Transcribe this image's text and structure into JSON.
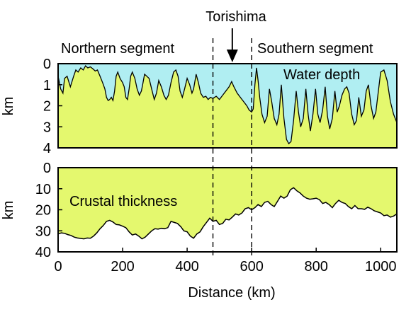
{
  "annotations": {
    "torishima": "Torishima",
    "northern_segment": "Northern segment",
    "southern_segment": "Southern segment",
    "boundary_lines_x_km": [
      480,
      600
    ],
    "arrow_x_km": 540
  },
  "colors": {
    "water": "#b0eef2",
    "crust": "#e4f86e",
    "line": "#000000"
  },
  "chart_data": [
    {
      "type": "area",
      "label": "Water depth",
      "ylabel": "km",
      "xlim": [
        0,
        1050
      ],
      "ylim": [
        0,
        4
      ],
      "y_inverted": true,
      "yticks": [
        "0",
        "1",
        "2",
        "3",
        "4"
      ],
      "fill_above": "water",
      "fill_below": "crust",
      "series": [
        {
          "name": "Water depth",
          "x": [
            0,
            8,
            15,
            20,
            28,
            38,
            48,
            55,
            62,
            70,
            78,
            85,
            92,
            100,
            108,
            115,
            122,
            130,
            138,
            145,
            150,
            155,
            160,
            165,
            170,
            175,
            180,
            185,
            192,
            200,
            205,
            210,
            215,
            220,
            225,
            230,
            238,
            245,
            252,
            258,
            262,
            268,
            275,
            282,
            290,
            298,
            305,
            312,
            320,
            328,
            335,
            342,
            350,
            358,
            365,
            372,
            378,
            385,
            392,
            400,
            408,
            415,
            420,
            428,
            435,
            442,
            450,
            458,
            465,
            472,
            480,
            490,
            500,
            510,
            520,
            530,
            538,
            545,
            555,
            565,
            575,
            585,
            592,
            600,
            605,
            610,
            615,
            620,
            625,
            632,
            640,
            648,
            655,
            662,
            670,
            678,
            685,
            692,
            700,
            708,
            715,
            722,
            730,
            738,
            745,
            752,
            760,
            768,
            775,
            782,
            790,
            798,
            805,
            812,
            820,
            828,
            835,
            842,
            850,
            858,
            865,
            872,
            880,
            888,
            895,
            902,
            910,
            918,
            925,
            932,
            940,
            948,
            955,
            962,
            970,
            978,
            985,
            992,
            1000,
            1010,
            1020,
            1030,
            1040,
            1050
          ],
          "values": [
            0.6,
            1.2,
            1.4,
            0.7,
            0.6,
            1.1,
            0.6,
            0.3,
            0.4,
            0.2,
            0.3,
            0.1,
            0.2,
            0.15,
            0.25,
            0.35,
            0.3,
            0.6,
            0.9,
            1.2,
            1.6,
            1.75,
            1.7,
            1.6,
            1.75,
            1.3,
            0.6,
            0.4,
            0.7,
            0.9,
            1.1,
            1.6,
            1.7,
            1.2,
            0.6,
            0.4,
            0.7,
            1.2,
            1.5,
            1.3,
            1.0,
            0.5,
            0.6,
            0.7,
            1.2,
            1.7,
            1.4,
            0.8,
            1.1,
            1.5,
            1.7,
            1.5,
            0.9,
            0.4,
            0.3,
            0.6,
            1.3,
            1.6,
            1.2,
            0.7,
            1.0,
            1.4,
            1.2,
            0.5,
            0.9,
            1.4,
            1.6,
            1.55,
            1.7,
            1.6,
            1.65,
            1.55,
            1.7,
            1.5,
            1.3,
            1.1,
            0.85,
            1.1,
            1.4,
            1.6,
            1.8,
            2.0,
            2.2,
            2.3,
            2.15,
            1.0,
            0.2,
            0.8,
            1.6,
            2.4,
            2.8,
            2.5,
            1.2,
            1.8,
            2.6,
            2.9,
            2.4,
            1.0,
            2.6,
            3.6,
            3.8,
            3.7,
            2.7,
            1.3,
            2.3,
            3.0,
            2.6,
            1.2,
            2.4,
            3.2,
            2.4,
            1.2,
            2.4,
            2.8,
            2.2,
            1.1,
            2.5,
            3.1,
            2.6,
            1.3,
            2.3,
            2.0,
            1.5,
            1.2,
            1.1,
            1.4,
            2.4,
            2.9,
            2.7,
            1.6,
            2.5,
            2.2,
            1.3,
            1.0,
            2.0,
            2.6,
            2.3,
            1.4,
            0.4,
            0.3,
            0.8,
            1.8,
            2.4,
            2.8
          ]
        }
      ]
    },
    {
      "type": "area",
      "label": "Crustal thickness",
      "ylabel": "km",
      "xlabel": "Distance (km)",
      "xlim": [
        0,
        1050
      ],
      "ylim": [
        0,
        40
      ],
      "y_inverted": true,
      "xticks": [
        "0",
        "200",
        "400",
        "600",
        "800",
        "1000"
      ],
      "yticks": [
        "0",
        "10",
        "20",
        "30",
        "40"
      ],
      "fill_above": "crust",
      "fill_below": "none",
      "series": [
        {
          "name": "Crustal thickness",
          "x": [
            0,
            10,
            20,
            30,
            40,
            50,
            60,
            70,
            80,
            90,
            100,
            110,
            120,
            130,
            140,
            150,
            160,
            170,
            180,
            190,
            200,
            210,
            220,
            230,
            240,
            250,
            260,
            270,
            280,
            290,
            300,
            310,
            320,
            330,
            340,
            350,
            360,
            370,
            380,
            390,
            400,
            410,
            420,
            430,
            440,
            450,
            460,
            470,
            480,
            490,
            500,
            510,
            520,
            530,
            540,
            550,
            560,
            570,
            580,
            590,
            600,
            610,
            620,
            630,
            640,
            650,
            660,
            670,
            680,
            690,
            700,
            710,
            720,
            730,
            740,
            750,
            760,
            770,
            780,
            790,
            800,
            810,
            820,
            830,
            840,
            850,
            860,
            870,
            880,
            890,
            900,
            910,
            920,
            930,
            940,
            950,
            960,
            970,
            980,
            990,
            1000,
            1010,
            1020,
            1030,
            1040,
            1050
          ],
          "values": [
            31.5,
            31.0,
            31.2,
            31.8,
            32.2,
            33.0,
            33.4,
            33.6,
            33.8,
            33.4,
            33.5,
            32.5,
            31.0,
            29.0,
            27.5,
            25.5,
            25.0,
            25.8,
            27.0,
            27.2,
            27.8,
            28.5,
            30.5,
            32.0,
            31.5,
            32.5,
            33.8,
            33.0,
            31.5,
            30.0,
            29.0,
            29.2,
            28.8,
            29.0,
            28.5,
            25.5,
            26.0,
            26.5,
            28.0,
            30.0,
            30.5,
            32.5,
            33.5,
            31.5,
            30.5,
            28.0,
            26.0,
            24.0,
            25.5,
            25.0,
            27.0,
            26.5,
            24.5,
            24.8,
            23.5,
            22.0,
            22.5,
            21.5,
            19.5,
            19.0,
            20.0,
            19.0,
            17.5,
            18.5,
            16.5,
            16.0,
            17.5,
            18.5,
            16.0,
            13.5,
            14.5,
            13.5,
            10.5,
            9.5,
            11.0,
            12.0,
            13.5,
            14.5,
            15.0,
            14.8,
            14.5,
            15.2,
            17.0,
            16.5,
            17.5,
            19.0,
            17.0,
            15.5,
            16.5,
            17.0,
            18.5,
            19.5,
            18.0,
            19.5,
            19.5,
            19.8,
            18.8,
            19.5,
            20.5,
            21.0,
            21.5,
            22.8,
            22.5,
            23.5,
            23.0,
            22.0
          ]
        }
      ]
    }
  ]
}
